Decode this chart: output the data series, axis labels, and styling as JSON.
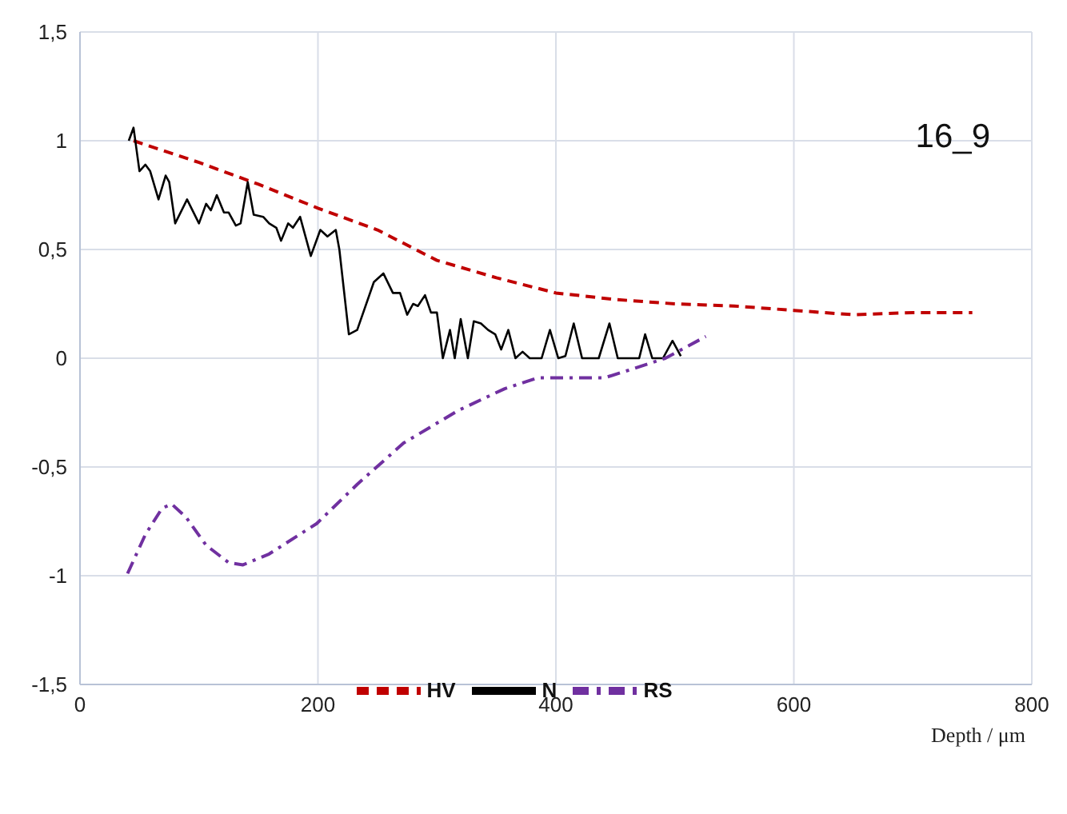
{
  "chart_data": {
    "type": "line",
    "xlabel": "Depth / μm",
    "annotations": [
      "16_9"
    ],
    "xlim": [
      0,
      800
    ],
    "xticks": [
      0,
      200,
      400,
      600,
      800
    ],
    "ylim": [
      -1.5,
      1.5
    ],
    "yticks": [
      {
        "value": -1.5,
        "label": "-1,5"
      },
      {
        "value": -1,
        "label": "-1"
      },
      {
        "value": -0.5,
        "label": "-0,5"
      },
      {
        "value": 0,
        "label": "0"
      },
      {
        "value": 0.5,
        "label": "0,5"
      },
      {
        "value": 1,
        "label": "1"
      },
      {
        "value": 1.5,
        "label": "1,5"
      }
    ],
    "grid": true,
    "legend": "bottom",
    "marker": "none",
    "series": [
      {
        "name": "HV",
        "color": "#c00000",
        "line_style": "dashed",
        "x": [
          45,
          100,
          150,
          200,
          250,
          300,
          350,
          400,
          450,
          500,
          550,
          600,
          650,
          700,
          750
        ],
        "values": [
          1.0,
          0.9,
          0.8,
          0.69,
          0.59,
          0.45,
          0.37,
          0.3,
          0.27,
          0.25,
          0.24,
          0.22,
          0.2,
          0.21,
          0.21
        ]
      },
      {
        "name": "N",
        "color": "#000000",
        "line_style": "solid",
        "x": [
          41,
          45,
          50,
          55,
          59,
          66,
          72,
          75,
          80,
          90,
          100,
          106,
          110,
          115,
          121,
          125,
          131,
          135,
          141,
          146,
          154,
          159,
          165,
          169,
          175,
          179,
          185,
          194,
          202,
          208,
          215,
          218,
          226,
          233,
          247,
          255,
          263,
          269,
          275,
          280,
          284,
          290,
          295,
          300,
          305,
          311,
          315,
          320,
          326,
          331,
          337,
          343,
          349,
          354,
          360,
          366,
          372,
          378,
          388,
          395,
          402,
          408,
          415,
          422,
          436,
          445,
          452,
          470,
          475,
          481,
          490,
          498,
          505
        ],
        "values": [
          1.0,
          1.06,
          0.86,
          0.89,
          0.86,
          0.73,
          0.84,
          0.81,
          0.62,
          0.73,
          0.62,
          0.71,
          0.68,
          0.75,
          0.67,
          0.67,
          0.61,
          0.62,
          0.81,
          0.66,
          0.65,
          0.62,
          0.6,
          0.54,
          0.62,
          0.6,
          0.65,
          0.47,
          0.59,
          0.56,
          0.59,
          0.5,
          0.11,
          0.13,
          0.35,
          0.39,
          0.3,
          0.3,
          0.2,
          0.25,
          0.24,
          0.29,
          0.21,
          0.21,
          0.0,
          0.13,
          0.0,
          0.18,
          0.0,
          0.17,
          0.16,
          0.13,
          0.11,
          0.04,
          0.13,
          0.0,
          0.03,
          0.0,
          0.0,
          0.13,
          0.0,
          0.01,
          0.16,
          0.0,
          0.0,
          0.16,
          0.0,
          0.0,
          0.11,
          0.0,
          0.0,
          0.08,
          0.01
        ]
      },
      {
        "name": "RS",
        "color": "#7030a0",
        "line_style": "dashdot",
        "x": [
          40,
          55,
          69,
          77,
          89,
          106,
          125,
          137,
          159,
          199,
          233,
          272,
          318,
          357,
          385,
          413,
          441,
          464,
          492,
          526
        ],
        "values": [
          -0.99,
          -0.81,
          -0.69,
          -0.67,
          -0.73,
          -0.86,
          -0.94,
          -0.95,
          -0.9,
          -0.76,
          -0.58,
          -0.39,
          -0.24,
          -0.14,
          -0.09,
          -0.09,
          -0.09,
          -0.05,
          0.0,
          0.1
        ]
      }
    ]
  }
}
